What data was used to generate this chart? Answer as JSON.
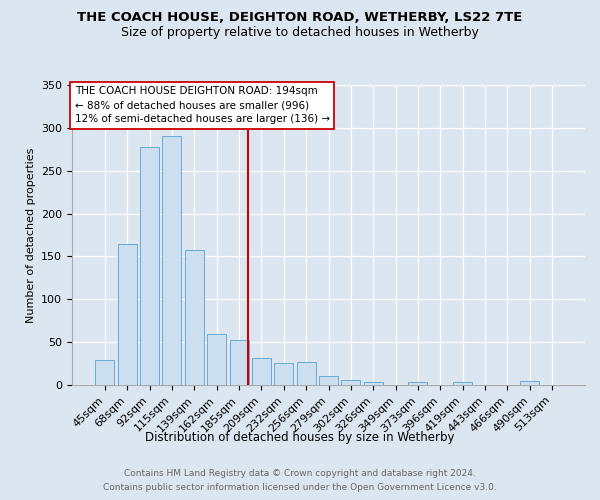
{
  "title": "THE COACH HOUSE, DEIGHTON ROAD, WETHERBY, LS22 7TE",
  "subtitle": "Size of property relative to detached houses in Wetherby",
  "xlabel": "Distribution of detached houses by size in Wetherby",
  "ylabel": "Number of detached properties",
  "footer_line1": "Contains HM Land Registry data © Crown copyright and database right 2024.",
  "footer_line2": "Contains public sector information licensed under the Open Government Licence v3.0.",
  "bar_labels": [
    "45sqm",
    "68sqm",
    "92sqm",
    "115sqm",
    "139sqm",
    "162sqm",
    "185sqm",
    "209sqm",
    "232sqm",
    "256sqm",
    "279sqm",
    "302sqm",
    "326sqm",
    "349sqm",
    "373sqm",
    "396sqm",
    "419sqm",
    "443sqm",
    "466sqm",
    "490sqm",
    "513sqm"
  ],
  "bar_values": [
    29,
    165,
    278,
    290,
    157,
    59,
    53,
    32,
    26,
    27,
    11,
    6,
    4,
    0,
    3,
    0,
    4,
    0,
    0,
    5,
    0
  ],
  "bar_color": "#ccdff0",
  "bar_edge_color": "#6aaad4",
  "vline_x": 6.42,
  "annotation_text_lines": [
    "THE COACH HOUSE DEIGHTON ROAD: 194sqm",
    "← 88% of detached houses are smaller (996)",
    "12% of semi-detached houses are larger (136) →"
  ],
  "vline_color": "#cc0000",
  "annotation_box_facecolor": "#ffffff",
  "annotation_box_edgecolor": "#cc0000",
  "ylim": [
    0,
    350
  ],
  "yticks": [
    0,
    50,
    100,
    150,
    200,
    250,
    300,
    350
  ],
  "background_color": "#dce6f0",
  "grid_color": "#ffffff",
  "title_fontsize": 9.5,
  "subtitle_fontsize": 9.0,
  "ylabel_fontsize": 8.0,
  "xlabel_fontsize": 8.5,
  "tick_fontsize": 8.0,
  "ann_fontsize": 7.5,
  "footer_fontsize": 6.5,
  "footer_color": "#666666"
}
